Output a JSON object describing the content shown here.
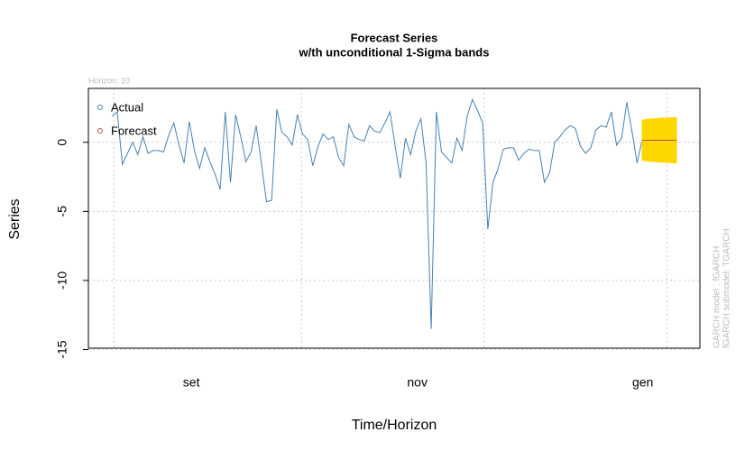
{
  "chart_data": {
    "type": "line",
    "title": "Forecast Series",
    "subtitle": "w/th unconditional 1-Sigma bands",
    "x_label": "Time/Horizon",
    "y_label": "Series",
    "horizon_note": "Horizon: 10",
    "side_notes": [
      "GARCH model :  fGARCH",
      "fGARCH submodel: TGARCH"
    ],
    "xlim": [
      -4.6,
      114.2
    ],
    "xticks": [
      {
        "value": 15.4,
        "label": "set"
      },
      {
        "value": 59.3,
        "label": "nov"
      },
      {
        "value": 103.1,
        "label": "gen"
      }
    ],
    "xgrid": [
      0.35,
      36.8,
      72.3,
      107.8
    ],
    "ylim": [
      -14.9,
      3.9
    ],
    "yticks": [
      0,
      -5,
      -10,
      -15
    ],
    "grid": true,
    "legend": "top-left",
    "series": [
      {
        "name": "Actual",
        "color": "#4682b4",
        "x": [
          0,
          1,
          2,
          3,
          4,
          5,
          6,
          7,
          8,
          9,
          10,
          11,
          12,
          13,
          14,
          15,
          16,
          17,
          18,
          19,
          20,
          21,
          22,
          23,
          24,
          25,
          26,
          27,
          28,
          29,
          30,
          31,
          32,
          33,
          34,
          35,
          36,
          37,
          38,
          39,
          40,
          41,
          42,
          43,
          44,
          45,
          46,
          47,
          48,
          49,
          50,
          51,
          52,
          53,
          54,
          55,
          56,
          57,
          58,
          59,
          60,
          61,
          62,
          63,
          64,
          65,
          66,
          67,
          68,
          69,
          70,
          71,
          72,
          73,
          74,
          75,
          76,
          77,
          78,
          79,
          80,
          81,
          82,
          83,
          84,
          85,
          86,
          87,
          88,
          89,
          90,
          91,
          92,
          93,
          94,
          95,
          96,
          97,
          98,
          99,
          100,
          101,
          102,
          103
        ],
        "values": [
          1.9,
          2.2,
          -1.6,
          -0.8,
          0,
          -0.9,
          0.4,
          -0.8,
          -0.6,
          -0.6,
          -0.7,
          0.5,
          1.4,
          -0.2,
          -1.5,
          1.5,
          -0.6,
          -1.9,
          -0.4,
          -1.4,
          -2.3,
          -3.4,
          2.2,
          -2.9,
          2.0,
          0.4,
          -1.4,
          -0.7,
          1.2,
          -1.5,
          -4.3,
          -4.2,
          2.4,
          0.7,
          0.4,
          -0.2,
          2.0,
          0.6,
          0.2,
          -1.7,
          -0.3,
          0.6,
          0.2,
          0.4,
          -1.1,
          -1.7,
          1.3,
          0.4,
          0.2,
          0.1,
          1.2,
          0.8,
          0.7,
          1.4,
          2.2,
          -0.3,
          -2.6,
          0.3,
          -0.9,
          0.8,
          1.7,
          -1.5,
          -13.5,
          2.2,
          -0.7,
          -1.1,
          -1.5,
          0.3,
          -0.6,
          1.9,
          3.1,
          2.3,
          1.4,
          -6.3,
          -2.9,
          -1.9,
          -0.5,
          -0.4,
          -0.4,
          -1.3,
          -0.8,
          -0.5,
          -0.6,
          -0.6,
          -2.9,
          -2.2,
          0,
          0.4,
          0.9,
          1.2,
          1.0,
          -0.3,
          -0.8,
          -0.4,
          0.9,
          1.2,
          1.1,
          2.2,
          -0.2,
          0.3,
          2.9,
          0.8,
          -1.5,
          0.2
        ]
      },
      {
        "name": "Forecast",
        "color": "#b5524a",
        "band_color": "#ffd700",
        "x": [
          103,
          103.74,
          104.48,
          105.22,
          105.96,
          106.7,
          107.44,
          108.18,
          108.92,
          109.66
        ],
        "values": [
          0.15,
          0.15,
          0.15,
          0.15,
          0.15,
          0.15,
          0.15,
          0.15,
          0.15,
          0.15
        ],
        "upper": [
          1.6,
          1.65,
          1.68,
          1.7,
          1.72,
          1.74,
          1.75,
          1.76,
          1.78,
          1.8
        ],
        "lower": [
          -1.3,
          -1.35,
          -1.38,
          -1.4,
          -1.42,
          -1.44,
          -1.45,
          -1.46,
          -1.48,
          -1.5
        ]
      }
    ]
  }
}
